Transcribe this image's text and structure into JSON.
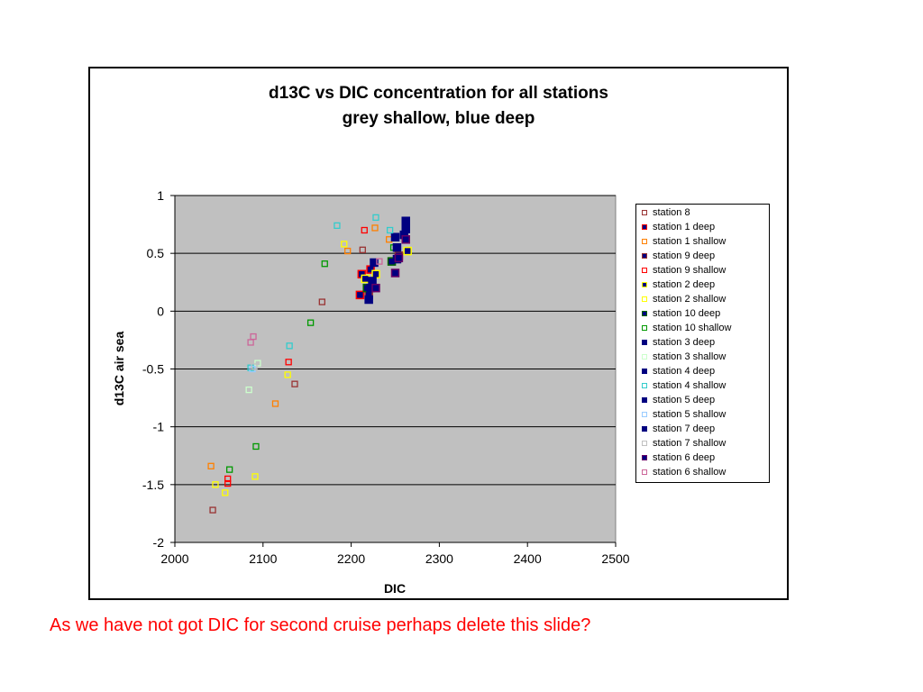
{
  "slide": {
    "note": "As we have not got DIC for second cruise perhaps delete this slide?",
    "note_color": "#ff0000"
  },
  "chart_data": {
    "type": "scatter",
    "title": "d13C vs DIC concentration for all stations",
    "subtitle": "grey shallow, blue deep",
    "xlabel": "DIC",
    "ylabel": "d13C air sea",
    "xlim": [
      2000,
      2500
    ],
    "ylim": [
      -2,
      1
    ],
    "xticks": [
      "2000",
      "2100",
      "2200",
      "2300",
      "2400",
      "2500"
    ],
    "yticks": [
      "1",
      "0.5",
      "0",
      "-0.5",
      "-1",
      "-1.5",
      "-2"
    ],
    "plot_background": "#c0c0c0",
    "grid": "horizontal",
    "legend_position": "right",
    "series": [
      {
        "name": "station 8",
        "style": "hollow",
        "color": "#993333",
        "points": [
          [
            2043,
            -1.72
          ],
          [
            2136,
            -0.63
          ],
          [
            2167,
            0.08
          ],
          [
            2213,
            0.53
          ]
        ]
      },
      {
        "name": "station 1 deep",
        "style": "filled",
        "color": "#ff0000",
        "fill": "#000080",
        "points": [
          [
            2212,
            0.32
          ],
          [
            2222,
            0.36
          ],
          [
            2210,
            0.14
          ]
        ]
      },
      {
        "name": "station 1 shallow",
        "style": "hollow",
        "color": "#ff8000",
        "points": [
          [
            2041,
            -1.34
          ],
          [
            2114,
            -0.8
          ],
          [
            2196,
            0.52
          ],
          [
            2227,
            0.72
          ],
          [
            2243,
            0.62
          ]
        ]
      },
      {
        "name": "station 9 deep",
        "style": "filled",
        "color": "#993333",
        "fill": "#000080",
        "points": [
          [
            2220,
            0.14
          ],
          [
            2254,
            0.48
          ]
        ]
      },
      {
        "name": "station 9 shallow",
        "style": "hollow",
        "color": "#ff0000",
        "points": [
          [
            2060,
            -1.45
          ],
          [
            2060,
            -1.49
          ],
          [
            2129,
            -0.44
          ],
          [
            2215,
            0.7
          ]
        ]
      },
      {
        "name": "station 2 deep",
        "style": "filled",
        "color": "#ffff00",
        "fill": "#000080",
        "points": [
          [
            2216,
            0.28
          ],
          [
            2228,
            0.32
          ],
          [
            2264,
            0.52
          ]
        ]
      },
      {
        "name": "station 2 shallow",
        "style": "hollow",
        "color": "#ffff00",
        "points": [
          [
            2046,
            -1.5
          ],
          [
            2057,
            -1.57
          ],
          [
            2091,
            -1.43
          ],
          [
            2128,
            -0.55
          ],
          [
            2192,
            0.58
          ]
        ]
      },
      {
        "name": "station 10 deep",
        "style": "filled",
        "color": "#006600",
        "fill": "#000080",
        "points": [
          [
            2218,
            0.2
          ],
          [
            2246,
            0.43
          ]
        ]
      },
      {
        "name": "station 10 shallow",
        "style": "hollow",
        "color": "#009900",
        "points": [
          [
            2062,
            -1.37
          ],
          [
            2092,
            -1.17
          ],
          [
            2154,
            -0.1
          ],
          [
            2170,
            0.41
          ],
          [
            2248,
            0.55
          ]
        ]
      },
      {
        "name": "station 3 deep",
        "style": "filled",
        "color": "#000080",
        "fill": "#000080",
        "points": [
          [
            2224,
            0.26
          ],
          [
            2252,
            0.55
          ]
        ]
      },
      {
        "name": "station 3 shallow",
        "style": "hollow",
        "color": "#ccffcc",
        "points": [
          [
            2084,
            -0.68
          ],
          [
            2094,
            -0.45
          ]
        ]
      },
      {
        "name": "station 4 deep",
        "style": "filled",
        "color": "#000080",
        "fill": "#000080",
        "points": [
          [
            2226,
            0.42
          ],
          [
            2250,
            0.64
          ],
          [
            2262,
            0.71
          ]
        ]
      },
      {
        "name": "station 4 shallow",
        "style": "hollow",
        "color": "#33cccc",
        "points": [
          [
            2086,
            -0.49
          ],
          [
            2130,
            -0.3
          ],
          [
            2184,
            0.74
          ],
          [
            2228,
            0.81
          ],
          [
            2244,
            0.7
          ]
        ]
      },
      {
        "name": "station 5 deep",
        "style": "filled",
        "color": "#000080",
        "fill": "#000080",
        "points": [
          [
            2222,
            0.2
          ],
          [
            2260,
            0.66
          ],
          [
            2262,
            0.78
          ]
        ]
      },
      {
        "name": "station 5 shallow",
        "style": "hollow",
        "color": "#99ccff",
        "points": [
          [
            2088,
            -0.5
          ]
        ]
      },
      {
        "name": "station 7 deep",
        "style": "filled",
        "color": "#000080",
        "fill": "#000080",
        "points": [
          [
            2220,
            0.1
          ],
          [
            2252,
            0.45
          ]
        ]
      },
      {
        "name": "station 7 shallow",
        "style": "hollow",
        "color": "#c0c0c0",
        "points": [
          [
            2090,
            -0.48
          ]
        ]
      },
      {
        "name": "station 6 deep",
        "style": "filled",
        "color": "#660066",
        "fill": "#000080",
        "points": [
          [
            2228,
            0.2
          ],
          [
            2250,
            0.33
          ],
          [
            2254,
            0.46
          ],
          [
            2262,
            0.62
          ]
        ]
      },
      {
        "name": "station 6 shallow",
        "style": "hollow",
        "color": "#cc6699",
        "points": [
          [
            2086,
            -0.27
          ],
          [
            2089,
            -0.22
          ],
          [
            2232,
            0.43
          ]
        ]
      }
    ]
  }
}
